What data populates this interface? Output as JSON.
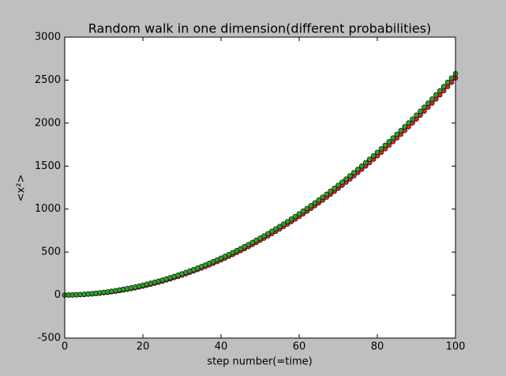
{
  "chart_data": {
    "type": "line",
    "title": "Random walk in one dimension(different probabilities)",
    "x_label": "step number(=time)",
    "y_label": "<x²>",
    "x": [
      0,
      1,
      2,
      3,
      4,
      5,
      6,
      7,
      8,
      9,
      10,
      11,
      12,
      13,
      14,
      15,
      16,
      17,
      18,
      19,
      20,
      21,
      22,
      23,
      24,
      25,
      26,
      27,
      28,
      29,
      30,
      31,
      32,
      33,
      34,
      35,
      36,
      37,
      38,
      39,
      40,
      41,
      42,
      43,
      44,
      45,
      46,
      47,
      48,
      49,
      50,
      51,
      52,
      53,
      54,
      55,
      56,
      57,
      58,
      59,
      60,
      61,
      62,
      63,
      64,
      65,
      66,
      67,
      68,
      69,
      70,
      71,
      72,
      73,
      74,
      75,
      76,
      77,
      78,
      79,
      80,
      81,
      82,
      83,
      84,
      85,
      86,
      87,
      88,
      89,
      90,
      91,
      92,
      93,
      94,
      95,
      96,
      97,
      98,
      99,
      100
    ],
    "series": [
      {
        "color": "#d62728",
        "values": [
          0,
          0.5,
          1.5,
          3,
          5,
          7.5,
          10.5,
          14,
          18,
          22.5,
          27.5,
          33,
          39,
          45.5,
          52.5,
          60,
          68,
          76.5,
          85.5,
          95,
          105,
          115.5,
          126.5,
          138,
          150,
          162.5,
          175.5,
          189,
          203,
          217.5,
          232.5,
          248,
          264,
          280.5,
          297.5,
          315,
          333,
          351.5,
          370.5,
          390,
          410,
          430.5,
          451.5,
          473,
          495,
          517.5,
          540.5,
          564,
          588,
          612.5,
          637.5,
          663,
          689,
          715.5,
          742.5,
          770,
          798,
          826.5,
          855.5,
          885,
          915,
          945.5,
          976.5,
          1008,
          1040,
          1072.5,
          1105.5,
          1139,
          1173,
          1207.5,
          1242.5,
          1278,
          1314,
          1350.5,
          1387.5,
          1425,
          1463,
          1501.5,
          1540.5,
          1580,
          1620,
          1660.5,
          1701.5,
          1743,
          1785,
          1827.5,
          1870.5,
          1914,
          1958,
          2002.5,
          2047.5,
          2093,
          2139,
          2185.5,
          2232.5,
          2280,
          2328,
          2376.5,
          2425.5,
          2475,
          2525
        ]
      },
      {
        "color": "#2ca02c",
        "values": [
          0,
          1,
          2.5,
          4.5,
          7,
          10,
          13.5,
          17.5,
          22,
          27,
          32.5,
          38.5,
          45,
          52,
          59.5,
          67.5,
          76,
          85,
          94.5,
          104.5,
          115,
          126,
          137.5,
          149.5,
          162,
          175,
          188.5,
          202.5,
          217,
          232,
          247.5,
          263.5,
          280,
          297,
          314.5,
          332.5,
          351,
          370,
          389.5,
          409.5,
          430,
          451,
          472.5,
          494.5,
          517,
          540,
          563.5,
          587.5,
          612,
          637,
          662.5,
          688.5,
          715,
          742,
          769.5,
          797.5,
          826,
          855,
          884.5,
          914.5,
          945,
          976,
          1007.5,
          1039.5,
          1072,
          1105,
          1138.5,
          1172.5,
          1207,
          1242,
          1277.5,
          1313.5,
          1350,
          1387,
          1424.5,
          1462.5,
          1501,
          1540,
          1579.5,
          1619.5,
          1660,
          1701,
          1742.5,
          1784.5,
          1827,
          1870,
          1913.5,
          1957.5,
          2002,
          2047,
          2092.5,
          2138.5,
          2185,
          2232,
          2279.5,
          2327.5,
          2376,
          2425,
          2474.5,
          2524.5,
          2575
        ]
      }
    ],
    "xlim": [
      0,
      100
    ],
    "xticks": [
      0,
      20,
      40,
      60,
      80,
      100
    ],
    "ylim": [
      -500,
      3000
    ],
    "yticks": [
      -500,
      0,
      500,
      1000,
      1500,
      2000,
      2500,
      3000
    ],
    "marker": "o",
    "grid": false
  }
}
